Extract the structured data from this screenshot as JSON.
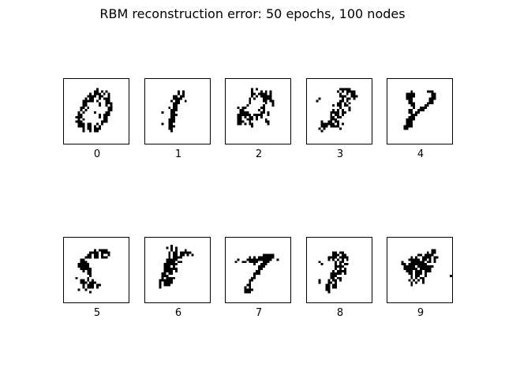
{
  "chart_data": {
    "type": "heatmap",
    "title": "RBM reconstruction error: 50 epochs, 100 nodes",
    "grid_rows": 2,
    "grid_cols": 5,
    "image_size": [
      28,
      28
    ],
    "colormap": "binary (black on white)",
    "panels": [
      {
        "label": "0",
        "rows": [
          "............................",
          "............................",
          "............................",
          "............................",
          "..............#.............",
          ".............##.#.#.........",
          "...........#.###.#.#........",
          "..........####.##..#........",
          ".........#.##..#.###........",
          "........#####.#...##........",
          "........##.....#..###.......",
          "........##.....#..#.#.......",
          ".......##.#........##.......",
          ".......#.#.........##.......",
          "......#.#....#....##........",
          "......##.......#.###........",
          ".....###.......#.##.........",
          "......#.#........##.........",
          ".....###........###.........",
          "......###.##..#.#...........",
          "......###.##.#.#............",
          "........#.##.###............",
          "........#..#.##.............",
          "............................",
          "............................",
          "............................",
          "............................",
          "............................"
        ]
      },
      {
        "label": "1",
        "rows": [
          "............................",
          "............................",
          "............................",
          "............................",
          "............................",
          "..............#.#...........",
          "..............#.#...........",
          "............##.##...........",
          "............####............",
          "...........#.##..#..........",
          "............###.............",
          "............##..............",
          "..........#.##..............",
          "...........###..............",
          ".......#...##...............",
          "...........###..............",
          "...........##...............",
          "..........###...............",
          "..........###...............",
          ".......#..##................",
          "..........###...............",
          "..........##................",
          "...........#................",
          "............................",
          "............................",
          "............................",
          "............................",
          "............................"
        ]
      },
      {
        "label": "2",
        "rows": [
          "............................",
          "............................",
          "............................",
          "............................",
          "...........#.#..............",
          "...........#...#.#.#........",
          "...........##.####.#........",
          "...........#.#.#####........",
          "..........#.#...####........",
          "..........#.....##.##.......",
          "..........#......#..#.......",
          ".........#......#...#.......",
          ".....#.##......##...........",
          "......##......#.#...........",
          "......####.....##.#.........",
          ".....######.####..#.........",
          ".....##.#.##.#.#............",
          ".....##..###.#...#..........",
          ".....###..#......##.........",
          ".....##.#.##......#.........",
          "...........#................",
          "............................",
          "............................",
          "............................",
          "............................",
          "............................",
          "............................",
          "............................"
        ]
      },
      {
        "label": "3",
        "rows": [
          "............................",
          "............................",
          "............................",
          "............................",
          "..............#####.........",
          ".............#.#.####.......",
          "..............#..#.##.......",
          "..............###..###......",
          ".....#.........#.##.#.......",
          "....#.........##.#..........",
          ".............##.#.#.........",
          "...........#.##.##..........",
          "..............#...#.........",
          "...........#.#.#..#.........",
          "..........####.##...........",
          "..........#.##.#............",
          "..........##.##.............",
          "..........###...............",
          "......#..##.##..............",
          "......######.#.#............",
          "......###.####..............",
          ".....#.#......#.............",
          "......#.....................",
          "............................",
          "............................",
          "............................",
          "............................",
          "............................"
        ]
      },
      {
        "label": "4",
        "rows": [
          "............................",
          "............................",
          "............................",
          "............................",
          "............................",
          "..........#......###........",
          "........####.......##.......",
          "........####.......##.......",
          "........###.......###.......",
          ".........##.......##........",
          ".........###.....###........",
          "..........##....##..........",
          "...........#..###...........",
          ".........##..###............",
          ".........##.##..............",
          "..........###...............",
          ".........###................",
          "........####................",
          "........###.................",
          "........###.................",
          ".......####.................",
          ".......##...................",
          "............................",
          "............................",
          "............................",
          "............................",
          "............................",
          "............................"
        ]
      },
      {
        "label": "5",
        "rows": [
          "............................",
          "............................",
          "............................",
          "............................",
          "............................",
          ".............#.####.........",
          "...........####.####........",
          "..........##.##.#..#........",
          ".........###.##.###.........",
          ".......##...................",
          ".......###..................",
          "......#####.................",
          "......#####.................",
          ".......#####................",
          "........#.##................",
          "..........##................",
          "...........#................",
          ".....#....#.................",
          ".......##.#.#...............",
          ".......###.###..............",
          "........#.###.##............",
          "........#.###.#.............",
          "......#..#..................",
          "...........#................",
          "............................",
          "............................",
          "............................",
          "............................"
        ]
      },
      {
        "label": "6",
        "rows": [
          "............................",
          "............................",
          "............................",
          "...........#................",
          ".........#.#.#..............",
          "...........#.#...#..........",
          "..........#.##.#####........",
          "..........#.##.##.#.#.......",
          "..........#.####............",
          ".........#####..............",
          ".........####.##............",
          "........######..............",
          "........###.#...............",
          "........######..............",
          "........####.#..............",
          ".......##.##................",
          ".......###..................",
          ".......#.####...............",
          "......######................",
          "......#.####................",
          "......#.###.................",
          "......#.....................",
          "............................",
          "............................",
          "............................",
          "............................",
          "............................",
          "............................"
        ]
      },
      {
        "label": "7",
        "rows": [
          "............................",
          "............................",
          "............................",
          "............................",
          "............................",
          "............................",
          "............................",
          "................#####.......",
          "..........#.#.#######.......",
          ".....#...###########..#.....",
          "....#..##.####..###.........",
          "............#..###..........",
          "..............###...........",
          "..............##............",
          ".............##.............",
          "............###.............",
          "............#...............",
          "...........##...............",
          "..........##................",
          "..........#.................",
          ".........##.................",
          "........#.#.................",
          "........####................",
          "........###.................",
          "............................",
          "............................",
          "............................",
          "............................"
        ]
      },
      {
        "label": "8",
        "rows": [
          "............................",
          "............................",
          "............................",
          "............................",
          "............................",
          "............................",
          "...........##.##............",
          "...........###.##...........",
          ".........####.####..........",
          ".........#.#.#.#.#..........",
          ".....#......#.##............",
          "......#.....#.#.##..........",
          "............####............",
          "............#.#.#...........",
          "...........#.####...........",
          "..........#####.#...........",
          "..........###...............",
          "..........##.##.............",
          ".....#...#.##.#.............",
          ".....#...##.#...............",
          "........##.##...............",
          "........##.##...............",
          "........##..................",
          ".........#..................",
          "............................",
          "............................",
          "............................",
          "............................"
        ]
      },
      {
        "label": "9",
        "rows": [
          "............................",
          "............................",
          "............................",
          "............................",
          "............................",
          "...................##.......",
          ".................#.##.......",
          ".............##.####........",
          "..........#.#..####.##......",
          ".........#####.##.#.#.......",
          "......#...######.##.#.......",
          "......##.########...........",
          ".......#####.#######........",
          ".......######.#####.........",
          "........###.###.###.........",
          ".........##.###.#...........",
          "..........#.##..#..........#",
          "..........#.#.##............",
          ".........#.#.#.#............",
          "..........#.#..#............",
          "..........#.................",
          "............................",
          "............................",
          "............................",
          "............................",
          "............................",
          "............................",
          "............................"
        ]
      }
    ]
  }
}
